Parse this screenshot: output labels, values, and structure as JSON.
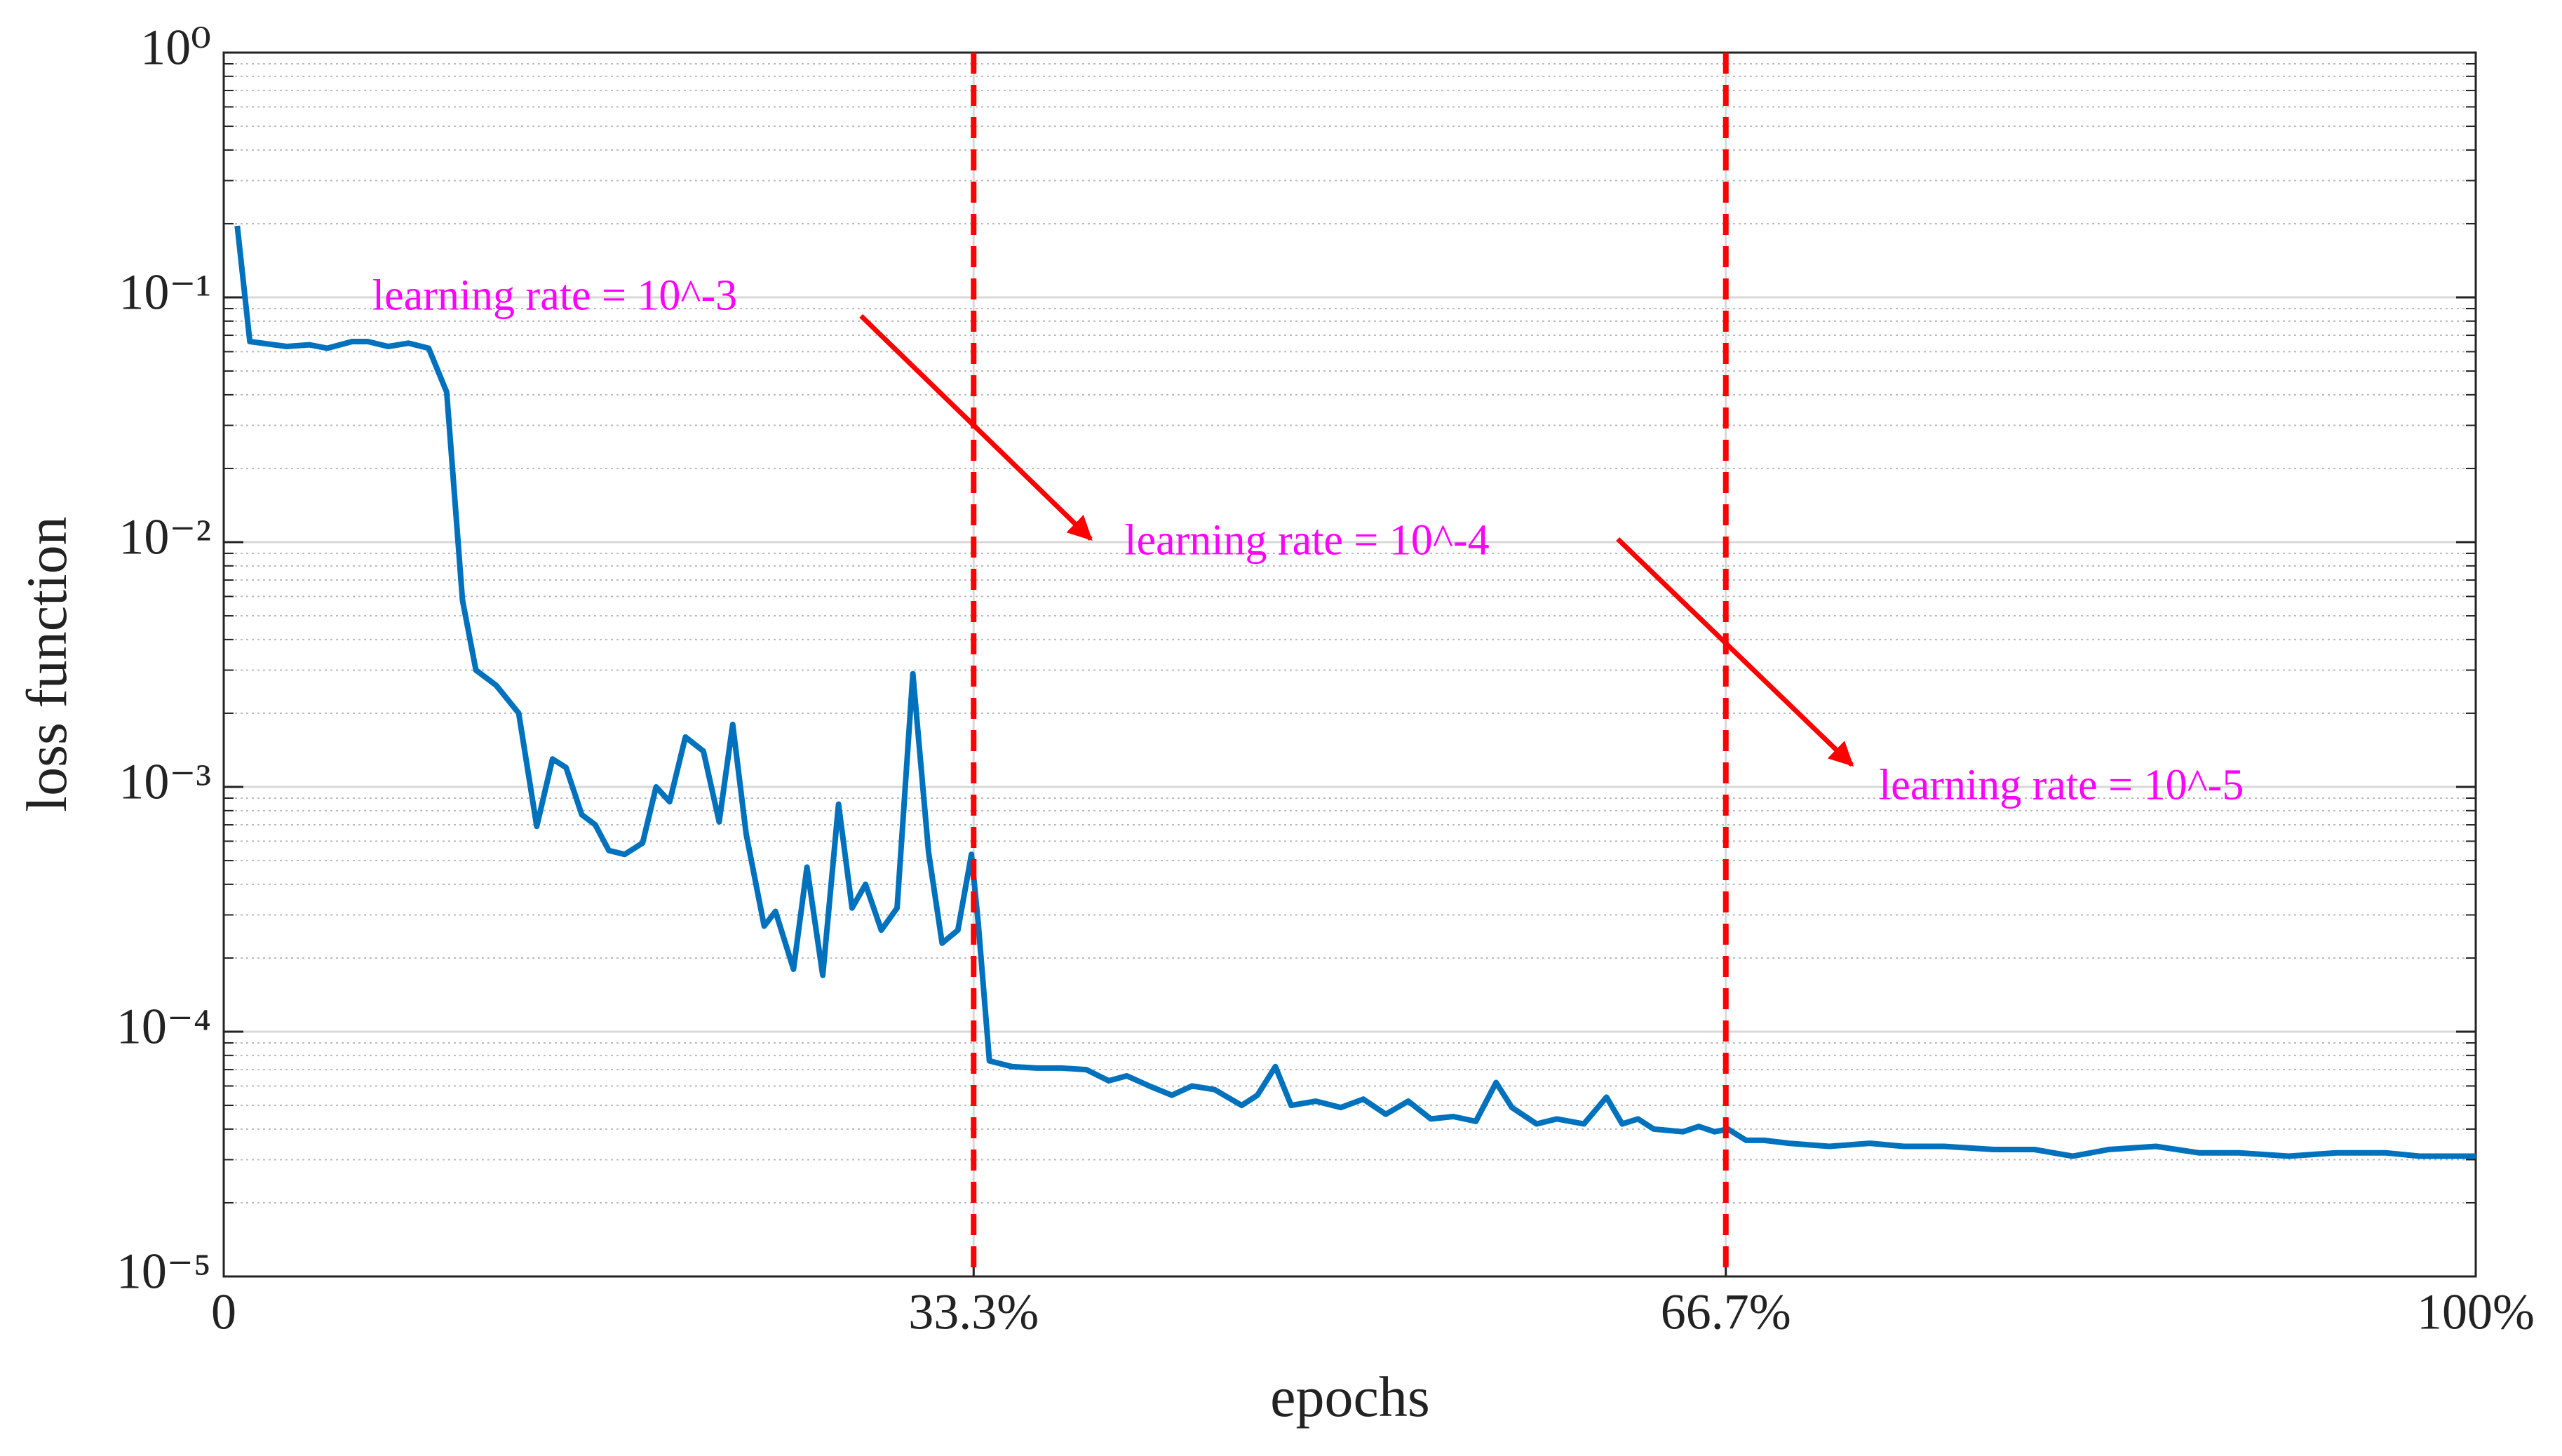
{
  "chart_data": {
    "type": "line",
    "xlabel": "epochs",
    "ylabel": "loss function",
    "xlim": [
      0,
      100
    ],
    "xticks": [
      0,
      {
        "value": 33.3,
        "label": "33.3%"
      },
      {
        "value": 66.7,
        "label": "66.7%"
      },
      {
        "value": 100,
        "label": "100%"
      }
    ],
    "ylim": [
      1e-05,
      1
    ],
    "yscale": "log",
    "yticks": [
      {
        "value": 1e-05,
        "label": "10⁻⁵"
      },
      {
        "value": 0.0001,
        "label": "10⁻⁴"
      },
      {
        "value": 0.001,
        "label": "10⁻³"
      },
      {
        "value": 0.01,
        "label": "10⁻²"
      },
      {
        "value": 0.1,
        "label": "10⁻¹"
      },
      {
        "value": 1,
        "label": "10⁰"
      }
    ],
    "grid": true,
    "minor_grid": true,
    "x": [
      0.6,
      1.16,
      2.8,
      3.8,
      4.6,
      5.7,
      6.4,
      7.3,
      8.2,
      9.1,
      9.9,
      10.6,
      11.2,
      12.1,
      13.1,
      13.9,
      14.6,
      15.2,
      15.9,
      16.5,
      17.1,
      17.8,
      18.6,
      19.2,
      19.8,
      20.5,
      21.3,
      22.0,
      22.6,
      23.2,
      24.0,
      24.5,
      25.3,
      25.9,
      26.6,
      27.3,
      27.9,
      28.5,
      29.2,
      29.9,
      30.6,
      31.3,
      31.9,
      32.6,
      33.2,
      33.5,
      34.0,
      35.0,
      36.1,
      37.2,
      38.3,
      39.3,
      40.1,
      41.1,
      42.1,
      43.0,
      44.0,
      45.2,
      45.9,
      46.7,
      47.4,
      48.5,
      49.6,
      50.6,
      51.6,
      52.6,
      53.6,
      54.6,
      55.6,
      56.5,
      57.2,
      58.3,
      59.2,
      60.4,
      61.4,
      62.1,
      62.8,
      63.5,
      64.8,
      65.5,
      66.2,
      66.8,
      67.6,
      68.4,
      69.5,
      71.3,
      73.1,
      74.6,
      76.4,
      78.6,
      80.4,
      82.1,
      83.7,
      85.8,
      87.7,
      89.5,
      91.7,
      93.8,
      96.0,
      97.5,
      98.9,
      100
    ],
    "series": [
      {
        "color": "#0072bd",
        "values": [
          0.196,
          0.066,
          0.063,
          0.064,
          0.062,
          0.066,
          0.066,
          0.063,
          0.065,
          0.062,
          0.041,
          0.0058,
          0.003,
          0.0026,
          0.002,
          0.00069,
          0.0013,
          0.0012,
          0.00077,
          0.0007,
          0.00055,
          0.00053,
          0.00059,
          0.001,
          0.00087,
          0.0016,
          0.0014,
          0.00072,
          0.0018,
          0.00064,
          0.00027,
          0.00031,
          0.00018,
          0.00047,
          0.00017,
          0.00085,
          0.00032,
          0.0004,
          0.00026,
          0.00032,
          0.0029,
          0.00054,
          0.00023,
          0.00026,
          0.00053,
          0.00028,
          7.6e-05,
          7.2e-05,
          7.1e-05,
          7.1e-05,
          7e-05,
          6.3e-05,
          6.6e-05,
          6e-05,
          5.5e-05,
          6e-05,
          5.8e-05,
          5e-05,
          5.5e-05,
          7.2e-05,
          5e-05,
          5.2e-05,
          4.9e-05,
          5.3e-05,
          4.6e-05,
          5.2e-05,
          4.4e-05,
          4.5e-05,
          4.3e-05,
          6.2e-05,
          4.9e-05,
          4.2e-05,
          4.4e-05,
          4.2e-05,
          5.4e-05,
          4.2e-05,
          4.4e-05,
          4e-05,
          3.9e-05,
          4.1e-05,
          3.9e-05,
          4e-05,
          3.6e-05,
          3.6e-05,
          3.5e-05,
          3.4e-05,
          3.5e-05,
          3.4e-05,
          3.4e-05,
          3.3e-05,
          3.3e-05,
          3.1e-05,
          3.3e-05,
          3.4e-05,
          3.2e-05,
          3.2e-05,
          3.1e-05,
          3.2e-05,
          3.2e-05,
          3.1e-05,
          3.1e-05,
          3.1e-05
        ]
      }
    ],
    "vlines": [
      {
        "x": 33.3,
        "color": "#ff0000"
      },
      {
        "x": 66.7,
        "color": "#ff0000"
      }
    ],
    "arrows": [
      {
        "from": [
          28.3,
          0.084
        ],
        "to": [
          38.5,
          0.0103
        ],
        "color": "#ff0000"
      },
      {
        "from": [
          61.9,
          0.0103
        ],
        "to": [
          72.3,
          0.00123
        ],
        "color": "#ff0000"
      }
    ],
    "annotations": [
      {
        "text": "learning rate = 10^-3",
        "x": 6.6,
        "y": 0.098,
        "color": "#ff00ff"
      },
      {
        "text": "learning rate = 10^-4",
        "x": 40.0,
        "y": 0.0098,
        "color": "#ff00ff"
      },
      {
        "text": "learning rate = 10^-5",
        "x": 73.5,
        "y": 0.00098,
        "color": "#ff00ff"
      }
    ]
  }
}
